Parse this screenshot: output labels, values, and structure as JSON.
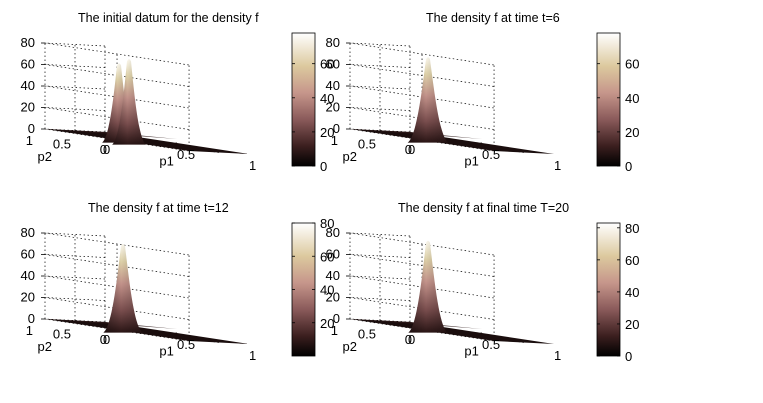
{
  "chart_data": [
    {
      "type": "surface",
      "title": "The initial datum for the density f",
      "xlabel": "p1",
      "ylabel": "p2",
      "x_ticks": [
        "0",
        "0.5",
        "1"
      ],
      "y_ticks": [
        "0",
        "0.5",
        "1"
      ],
      "z_ticks": [
        "0",
        "20",
        "40",
        "60",
        "80"
      ],
      "zlim": [
        0,
        80
      ],
      "peak": {
        "p1": 0.25,
        "p2": 0.3,
        "height": 72,
        "width": 0.05,
        "shape": "double"
      },
      "colorbar": {
        "ticks": [
          "0",
          "20",
          "40",
          "60"
        ],
        "range": [
          0,
          78
        ]
      }
    },
    {
      "type": "surface",
      "title": "The density f at time t=6",
      "xlabel": "p1",
      "ylabel": "p2",
      "x_ticks": [
        "0",
        "0.5",
        "1"
      ],
      "y_ticks": [
        "0",
        "0.5",
        "1"
      ],
      "z_ticks": [
        "0",
        "20",
        "40",
        "60",
        "80"
      ],
      "zlim": [
        0,
        80
      ],
      "peak": {
        "p1": 0.25,
        "p2": 0.3,
        "height": 72,
        "width": 0.045,
        "shape": "single"
      },
      "colorbar": {
        "ticks": [
          "0",
          "20",
          "40",
          "60"
        ],
        "range": [
          0,
          78
        ]
      }
    },
    {
      "type": "surface",
      "title": "The density f at time t=12",
      "xlabel": "p1",
      "ylabel": "p2",
      "x_ticks": [
        "0",
        "0.5",
        "1"
      ],
      "y_ticks": [
        "0",
        "0.5",
        "1"
      ],
      "z_ticks": [
        "0",
        "20",
        "40",
        "60",
        "80"
      ],
      "zlim": [
        0,
        80
      ],
      "peak": {
        "p1": 0.25,
        "p2": 0.3,
        "height": 75,
        "width": 0.04,
        "shape": "single"
      },
      "colorbar": {
        "ticks": [
          "20",
          "40",
          "60",
          "80"
        ],
        "range": [
          0,
          80
        ]
      }
    },
    {
      "type": "surface",
      "title": "The density f at final time T=20",
      "xlabel": "p1",
      "ylabel": "p2",
      "x_ticks": [
        "0",
        "0.5",
        "1"
      ],
      "y_ticks": [
        "0",
        "0.5",
        "1"
      ],
      "z_ticks": [
        "0",
        "20",
        "40",
        "60",
        "80"
      ],
      "zlim": [
        0,
        80
      ],
      "peak": {
        "p1": 0.25,
        "p2": 0.3,
        "height": 78,
        "width": 0.04,
        "shape": "single"
      },
      "colorbar": {
        "ticks": [
          "0",
          "20",
          "40",
          "60",
          "80"
        ],
        "range": [
          0,
          83
        ]
      }
    }
  ]
}
